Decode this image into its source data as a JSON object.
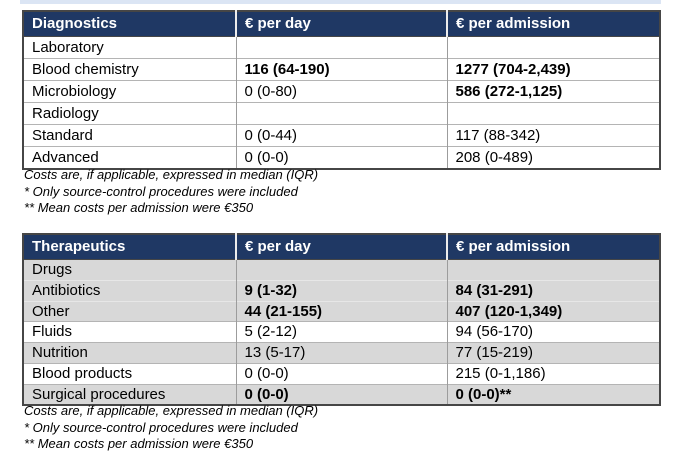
{
  "colors": {
    "header_bg": "#1F3864",
    "header_text": "#FFFFFF",
    "value_highlight_red": "#E00000",
    "shaded_row_gray": "#D8D8D8"
  },
  "footnotes": [
    "Costs are, if applicable, expressed in median (IQR)",
    "* Only source-control procedures were included",
    "** Mean costs per admission were €350"
  ],
  "tables": [
    {
      "title": "Diagnostics",
      "columns": [
        "€ per day",
        "€ per admission"
      ],
      "rows": [
        {
          "label": "Laboratory",
          "day": "",
          "admission": ""
        },
        {
          "label": "Blood chemistry",
          "day": "116 (64-190)",
          "admission": "1277 (704-2,439)"
        },
        {
          "label": "Microbiology",
          "day": "0 (0-80)",
          "admission": "586 (272-1,125)"
        },
        {
          "label": "Radiology",
          "day": "",
          "admission": ""
        },
        {
          "label": "Standard",
          "day": "0 (0-44)",
          "admission": "117 (88-342)"
        },
        {
          "label": "Advanced",
          "day": "0 (0-0)",
          "admission": "208 (0-489)"
        }
      ]
    },
    {
      "title": "Therapeutics",
      "columns": [
        "€ per day",
        "€ per admission"
      ],
      "rows": [
        {
          "label": "Drugs",
          "day": "",
          "admission": ""
        },
        {
          "label": "Antibiotics",
          "day": "9 (1-32)",
          "admission": "84 (31-291)"
        },
        {
          "label": "Other",
          "day": "44 (21-155)",
          "admission": "407 (120-1,349)"
        },
        {
          "label": "Fluids",
          "day": "5 (2-12)",
          "admission": "94 (56-170)"
        },
        {
          "label": "Nutrition",
          "day": "13 (5-17)",
          "admission": "77 (15-219)"
        },
        {
          "label": "Blood products",
          "day": "0 (0-0)",
          "admission": "215 (0-1,186)"
        },
        {
          "label": "Surgical procedures",
          "day": "0 (0-0)",
          "admission": "0 (0-0)**"
        }
      ]
    }
  ]
}
